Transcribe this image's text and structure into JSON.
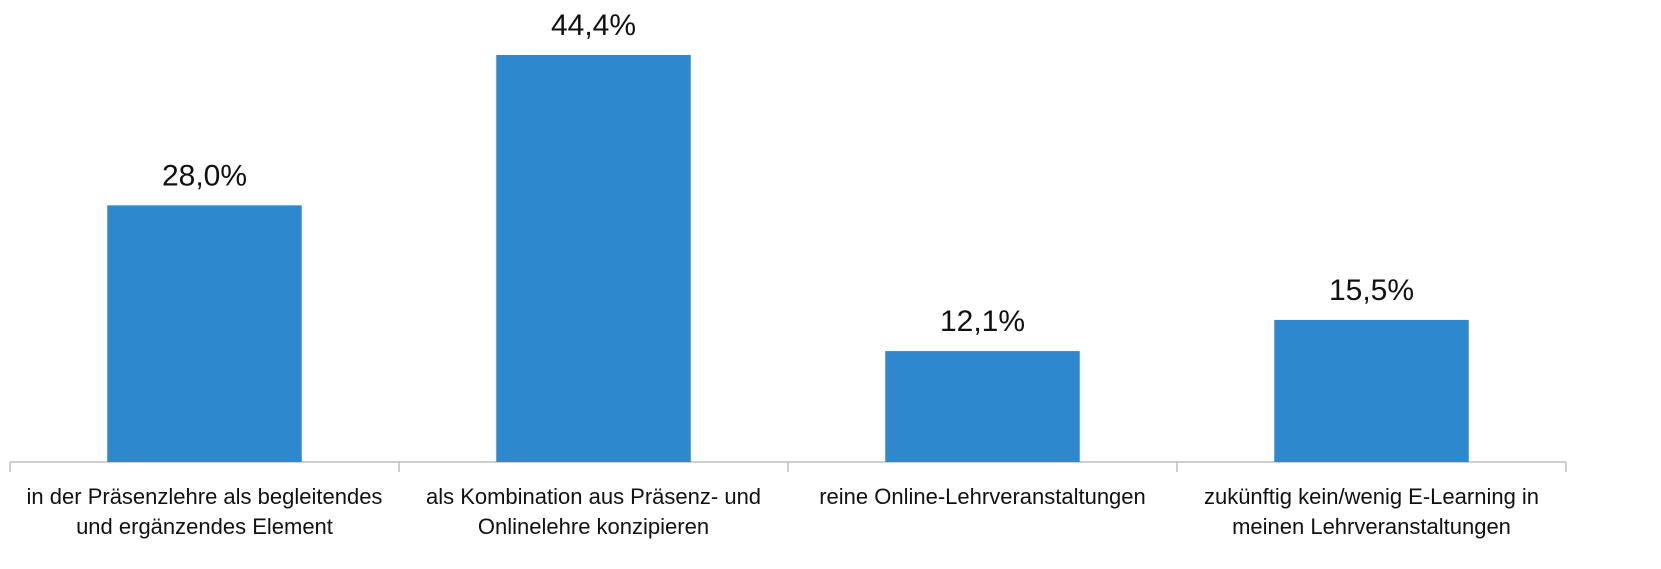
{
  "chart_data": {
    "type": "bar",
    "categories": [
      "in der Präsenzlehre als begleitendes und ergänzendes Element",
      "als Kombination aus Präsenz- und Onlinelehre konzipieren",
      "reine Online-Lehrveranstaltungen",
      "zukünftig kein/wenig E-Learning in meinen Lehrveranstaltungen"
    ],
    "values": [
      28.0,
      44.4,
      12.1,
      15.5
    ],
    "value_labels": [
      "28,0%",
      "44,4%",
      "12,1%",
      "15,5%"
    ],
    "color": "#2e88cd"
  }
}
